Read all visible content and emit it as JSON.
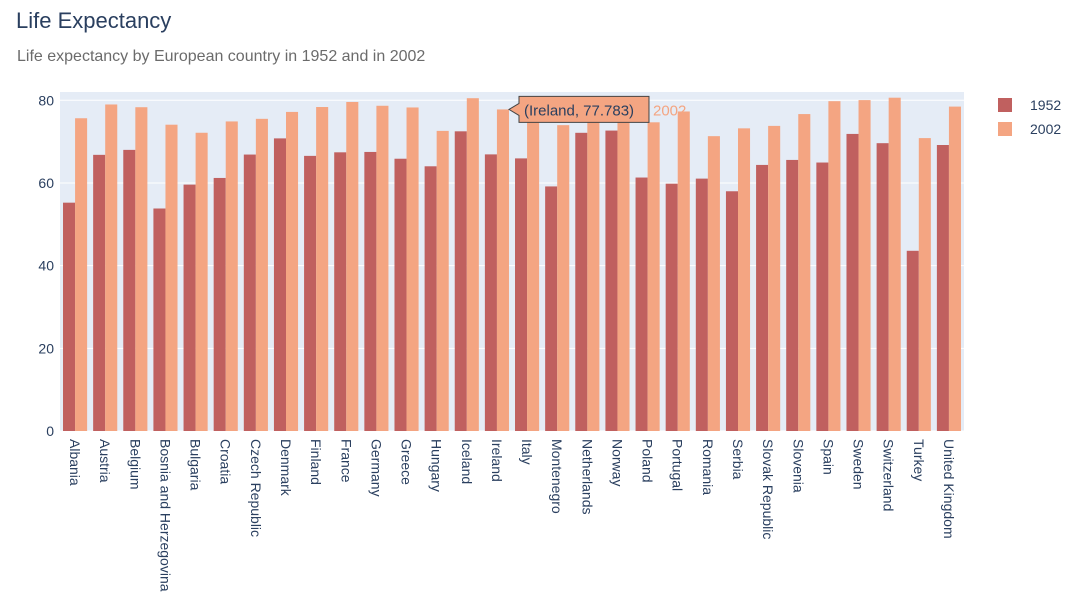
{
  "page": {
    "title": "Life Expectancy",
    "subtitle": "Life expectancy by European country in 1952 and in 2002"
  },
  "colors": {
    "background": "#ffffff",
    "plot_bg": "#e5ecf6",
    "grid": "#ffffff",
    "series_1952": "#c0605f",
    "series_2002": "#f4a582",
    "text": "#2a3f5f"
  },
  "chart_data": {
    "type": "bar",
    "barmode": "group",
    "title": "Life Expectancy",
    "subtitle": "Life expectancy by European country in 1952 and in 2002",
    "xlabel": "",
    "ylabel": "",
    "ylim": [
      0,
      82
    ],
    "yticks": [
      0,
      20,
      40,
      60,
      80
    ],
    "grid": true,
    "legend_position": "top-right",
    "categories": [
      "Albania",
      "Austria",
      "Belgium",
      "Bosnia and Herzegovina",
      "Bulgaria",
      "Croatia",
      "Czech Republic",
      "Denmark",
      "Finland",
      "France",
      "Germany",
      "Greece",
      "Hungary",
      "Iceland",
      "Ireland",
      "Italy",
      "Montenegro",
      "Netherlands",
      "Norway",
      "Poland",
      "Portugal",
      "Romania",
      "Serbia",
      "Slovak Republic",
      "Slovenia",
      "Spain",
      "Sweden",
      "Switzerland",
      "Turkey",
      "United Kingdom"
    ],
    "series": [
      {
        "name": "1952",
        "color": "#c0605f",
        "values": [
          55.23,
          66.8,
          68.0,
          53.82,
          59.6,
          61.21,
          66.87,
          70.78,
          66.55,
          67.41,
          67.5,
          65.86,
          64.03,
          72.49,
          66.91,
          65.94,
          59.16,
          72.13,
          72.67,
          61.31,
          59.82,
          61.05,
          57.99,
          64.36,
          65.57,
          64.94,
          71.86,
          69.62,
          43.59,
          69.18
        ]
      },
      {
        "name": "2002",
        "color": "#f4a582",
        "values": [
          75.65,
          78.98,
          78.32,
          74.09,
          72.14,
          74.88,
          75.51,
          77.18,
          78.37,
          79.59,
          78.67,
          78.26,
          72.59,
          80.5,
          77.783,
          80.24,
          73.98,
          78.53,
          79.05,
          74.67,
          77.29,
          71.32,
          73.21,
          73.8,
          76.66,
          79.78,
          80.04,
          80.62,
          70.85,
          78.47
        ]
      }
    ],
    "hover": {
      "category_index": 14,
      "series": "2002",
      "label": "(Ireland, 77.783)",
      "series_label": "2002"
    }
  }
}
